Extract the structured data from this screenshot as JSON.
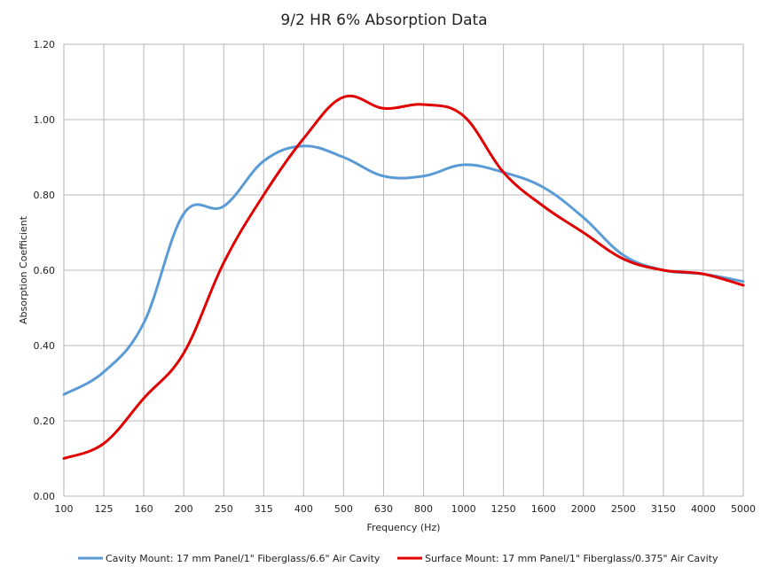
{
  "chart_data": {
    "type": "line",
    "title": "9/2 HR 6% Absorption Data",
    "xlabel": "Frequency (Hz)",
    "ylabel": "Absorption Coefficient",
    "categories": [
      "100",
      "125",
      "160",
      "200",
      "250",
      "315",
      "400",
      "500",
      "630",
      "800",
      "1000",
      "1250",
      "1600",
      "2000",
      "2500",
      "3150",
      "4000",
      "5000"
    ],
    "ylim": [
      0,
      1.2
    ],
    "yticks": [
      "0.00",
      "0.20",
      "0.40",
      "0.60",
      "0.80",
      "1.00",
      "1.20"
    ],
    "grid": true,
    "legend_position": "bottom",
    "series": [
      {
        "name": "Cavity Mount: 17 mm Panel/1\" Fiberglass/6.6\" Air Cavity",
        "color": "#5b9bd5",
        "values": [
          0.27,
          0.33,
          0.46,
          0.75,
          0.77,
          0.89,
          0.93,
          0.9,
          0.85,
          0.85,
          0.88,
          0.86,
          0.82,
          0.74,
          0.64,
          0.6,
          0.59,
          0.57
        ]
      },
      {
        "name": "Surface Mount: 17 mm Panel/1\" Fiberglass/0.375\" Air Cavity",
        "color": "#e00000",
        "values": [
          0.1,
          0.14,
          0.26,
          0.38,
          0.62,
          0.8,
          0.95,
          1.06,
          1.03,
          1.04,
          1.01,
          0.86,
          0.77,
          0.7,
          0.63,
          0.6,
          0.59,
          0.56
        ]
      }
    ]
  }
}
